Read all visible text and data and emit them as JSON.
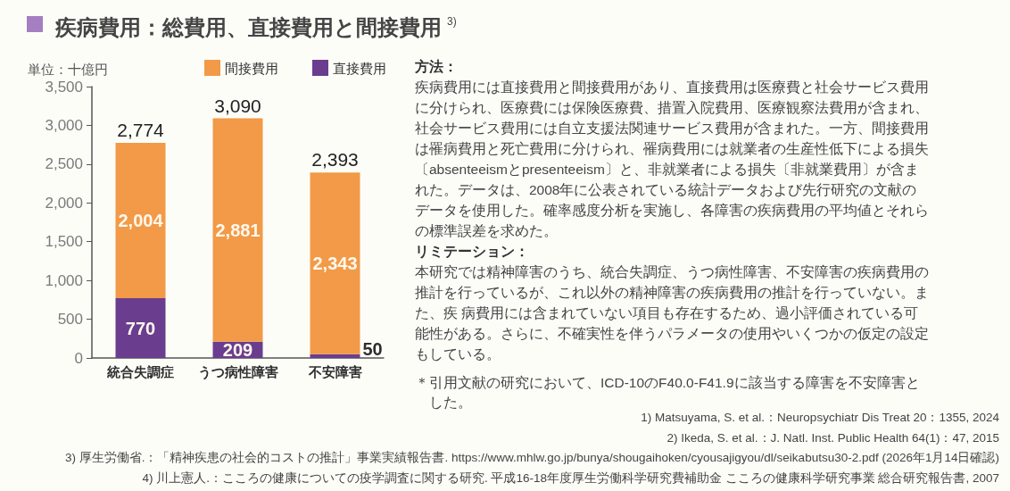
{
  "chart_data": {
    "type": "bar",
    "title": "疾病費用：総費用、直接費用と間接費用$^{3)}$",
    "ylabel": "単位：十億円",
    "categories": [
      "統合失調症",
      "うつ病性障害",
      "不安障害"
    ],
    "stacked": true,
    "series": [
      {
        "name": "直接費用",
        "color": "#6b3d8e",
        "values": [
          770,
          209,
          50
        ],
        "value_labels": [
          "770",
          "209",
          "50"
        ]
      },
      {
        "name": "間接費用",
        "color": "#f29a47",
        "values": [
          2004,
          2881,
          2343
        ],
        "value_labels": [
          "2,004",
          "2,881",
          "2,343"
        ]
      }
    ],
    "totals": [
      "2,774",
      "3,090",
      "2,393"
    ],
    "ylim": [
      0,
      3500
    ],
    "yticks": [
      0,
      500,
      {
        "value": 1000,
        "label": "1,000"
      },
      {
        "value": 1500,
        "label": "1,500"
      },
      {
        "value": 2000,
        "label": "2,000"
      },
      {
        "value": 2500,
        "label": "2,500"
      },
      {
        "value": 3000,
        "label": "3,000"
      },
      {
        "value": 3500,
        "label": "3,500"
      }
    ],
    "legend": "top right",
    "annotations": [
      "方法：",
      "疾病費用には直接費用と間接費用があり、直接費用は医療費と社会サービス費用に分けられ、医療費には保険医療費、措置入院費用、医療観察法費用が含まれ、社会サービス費用には自立支援法関連サービス費用が含まれた。一方、間接費用は罹病費用と死亡費用に分けられ、罹病費用には就業者の生産性低下による損失〔absenteeismとpresenteeism〕と、非就業者による損失〔非就業費用〕が含まれた。データは、2008年に公表されている統計データおよび先行研究の文献のデータを使用した。確率感度分析を実施し、各障害の疾病費用の平均値とそれらの標準誤差を求めた。",
      "リミテーション：",
      "本研究では精神障害のうち、統合失調症、うつ病性障害、不安障害の疾病費用の推計を行っているが、これ以外の精神障害の疾病費用の推計を行っていない。また、疾 病費用には含まれていない項目も存在するため、過小評価されている可能性がある。さらに、不確実性を伴うパラメータの使用やいくつかの仮定の設定もしている。",
      "＊引用文献の研究において、ICD-10のF40.0-F41.9に該当する障害を不安障害とした。",
      "1) Matsuyama, S. et al.：Neuropsychiatr Dis Treat 20：1355, 2024",
      "2) Ikeda, S. et al.：J. Natl. Inst. Public Health 64(1)：47, 2015",
      "3) 厚生労働省.：「精神疾患の社会的コストの推計」事業実績報告書. https://www.mhlw.go.jp/bunya/shougaihoken/cyousajigyou/dl/seikabutsu30-2.pdf (2026年1月14日確認)",
      "4) 川上憲人.：こころの健康についての疫学調査に関する研究. 平成16-18年度厚生労働科学研究費補助金 こころの健康科学研究事業 総合研究報告書, 2007"
    ]
  }
}
